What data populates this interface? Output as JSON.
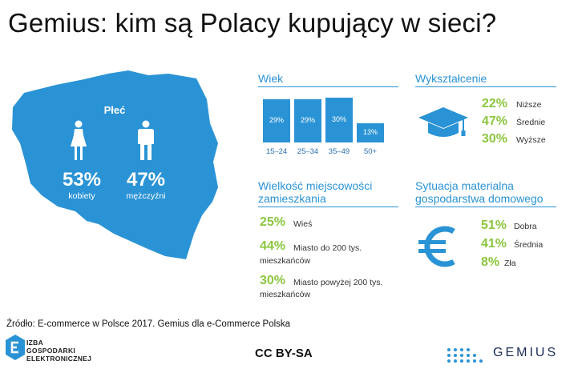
{
  "title": "Gemius: kim są Polacy kupujący w sieci?",
  "gender": {
    "heading": "Płeć",
    "women_pct": "53%",
    "women_label": "kobiety",
    "men_pct": "47%",
    "men_label": "mężczyźni"
  },
  "age": {
    "heading": "Wiek"
  },
  "education": {
    "heading": "Wykształcenie",
    "items": [
      {
        "pct": "22%",
        "label": "Niższe"
      },
      {
        "pct": "47%",
        "label": "Średnie"
      },
      {
        "pct": "30%",
        "label": "Wyższe"
      }
    ]
  },
  "residence": {
    "heading_line1": "Wielkość miejscowości",
    "heading_line2": "zamieszkania",
    "items": [
      {
        "pct": "25%",
        "label1": "Wieś",
        "label2": ""
      },
      {
        "pct": "44%",
        "label1": "Miasto do 200 tys.",
        "label2": "mieszkańców"
      },
      {
        "pct": "30%",
        "label1": "Miasto powyżej 200 tys.",
        "label2": "mieszkańców"
      }
    ]
  },
  "finance": {
    "heading_line1": "Sytuacja materialna",
    "heading_line2": "gospodarstwa domowego",
    "items": [
      {
        "pct": "51%",
        "label": "Dobra"
      },
      {
        "pct": "41%",
        "label": "Średnia"
      },
      {
        "pct": "8%",
        "label": "Zła"
      }
    ]
  },
  "source": "Źródło: E-commerce w Polsce 2017. Gemius dla e-Commerce Polska",
  "footer": {
    "ige_line1": "IZBA",
    "ige_line2": "GOSPODARKI",
    "ige_line3": "ELEKTRONICZNEJ",
    "license": "CC BY-SA",
    "gemius": "GEMIUS"
  },
  "colors": {
    "accent_blue": "#2a93d5",
    "accent_green": "#8cc63f",
    "map_blue": "#2a93d5"
  },
  "icons": [
    "woman-icon",
    "man-icon",
    "graduation-cap-icon",
    "euro-icon"
  ],
  "chart_data": {
    "type": "bar",
    "title": "Wiek",
    "categories": [
      "15–24",
      "25–34",
      "35–49",
      "50+"
    ],
    "values": [
      29,
      29,
      30,
      13
    ],
    "labels": [
      "29%",
      "29%",
      "30%",
      "13%"
    ],
    "ylim": [
      0,
      30
    ],
    "grid": false
  }
}
